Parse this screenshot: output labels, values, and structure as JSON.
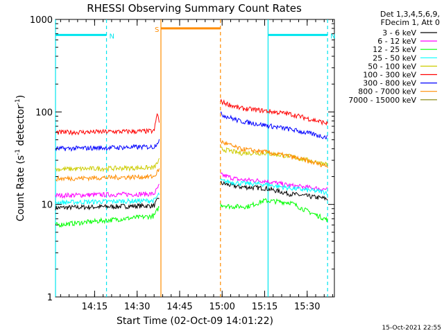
{
  "footer_timestamp": "15-Oct-2021 22:55",
  "chart_data": {
    "type": "line",
    "title": "RHESSI Observing Summary Count Rates",
    "xlabel": "Start Time (02-Oct-09 14:01:22)",
    "ylabel": "Count Rate (s⁻¹ detector⁻¹)",
    "ylabel_parts": [
      "Count Rate (s",
      "-1",
      " detector",
      "-1",
      ")"
    ],
    "y_scale": "log",
    "ylim": [
      1,
      1000
    ],
    "xlim_minutes": [
      14.02,
      15.66
    ],
    "x_tick_values": [
      14.25,
      14.5,
      14.75,
      15.0,
      15.25,
      15.5
    ],
    "x_tick_labels": [
      "14:15",
      "14:30",
      "14:45",
      "15:00",
      "15:15",
      "15:30"
    ],
    "y_tick_values": [
      1,
      10,
      100,
      1000
    ],
    "y_tick_labels": [
      "1",
      "10",
      "100",
      "1000"
    ],
    "legend_header": [
      "Det 1,3,4,5,6,9,",
      "FDecim 1, Att 0"
    ],
    "legend_position": "right",
    "gap": [
      14.64,
      14.99
    ],
    "series": [
      {
        "name": "3 - 6 keV",
        "color": "#000000",
        "seg1": [
          [
            14.02,
            9.2
          ],
          [
            14.6,
            9.7
          ],
          [
            14.63,
            12
          ]
        ],
        "seg2": [
          [
            14.99,
            17
          ],
          [
            15.1,
            15.5
          ],
          [
            15.25,
            15
          ],
          [
            15.4,
            13
          ],
          [
            15.62,
            11.5
          ]
        ]
      },
      {
        "name": "6 - 12 keV",
        "color": "#ff00ff",
        "seg1": [
          [
            14.02,
            12.5
          ],
          [
            14.6,
            13
          ],
          [
            14.63,
            16
          ]
        ],
        "seg2": [
          [
            14.99,
            21
          ],
          [
            15.1,
            18.5
          ],
          [
            15.25,
            18
          ],
          [
            15.4,
            16
          ],
          [
            15.62,
            14.5
          ]
        ]
      },
      {
        "name": "12 - 25 keV",
        "color": "#00ff00",
        "seg1": [
          [
            14.02,
            6
          ],
          [
            14.6,
            7.5
          ],
          [
            14.63,
            9.5
          ]
        ],
        "seg2": [
          [
            14.99,
            10
          ],
          [
            15.05,
            9.5
          ],
          [
            15.15,
            9.5
          ],
          [
            15.25,
            11
          ],
          [
            15.4,
            10.5
          ],
          [
            15.5,
            8.5
          ],
          [
            15.62,
            6.8
          ]
        ]
      },
      {
        "name": "25 - 50 keV",
        "color": "#00ffff",
        "seg1": [
          [
            14.02,
            10.5
          ],
          [
            14.6,
            11
          ],
          [
            14.63,
            13
          ]
        ],
        "seg2": [
          [
            14.99,
            18
          ],
          [
            15.1,
            17
          ],
          [
            15.25,
            16.5
          ],
          [
            15.4,
            15
          ],
          [
            15.62,
            13.5
          ]
        ]
      },
      {
        "name": "50 - 100 keV",
        "color": "#cccc00",
        "seg1": [
          [
            14.02,
            24
          ],
          [
            14.6,
            25
          ],
          [
            14.63,
            30
          ]
        ],
        "seg2": [
          [
            14.99,
            40
          ],
          [
            15.1,
            36
          ],
          [
            15.25,
            36
          ],
          [
            15.4,
            33
          ],
          [
            15.62,
            27
          ]
        ]
      },
      {
        "name": "100 - 300 keV",
        "color": "#ff0000",
        "seg1": [
          [
            14.02,
            60
          ],
          [
            14.6,
            62
          ],
          [
            14.62,
            100
          ],
          [
            14.63,
            75
          ]
        ],
        "seg2": [
          [
            14.99,
            130
          ],
          [
            15.1,
            110
          ],
          [
            15.25,
            103
          ],
          [
            15.4,
            95
          ],
          [
            15.62,
            75
          ]
        ]
      },
      {
        "name": "300 - 800 keV",
        "color": "#0000ff",
        "seg1": [
          [
            14.02,
            40
          ],
          [
            14.6,
            42
          ],
          [
            14.63,
            50
          ]
        ],
        "seg2": [
          [
            14.99,
            95
          ],
          [
            15.1,
            80
          ],
          [
            15.25,
            72
          ],
          [
            15.4,
            65
          ],
          [
            15.62,
            53
          ]
        ]
      },
      {
        "name": "800 - 7000 keV",
        "color": "#ff8c00",
        "seg1": [
          [
            14.02,
            19
          ],
          [
            14.6,
            20
          ],
          [
            14.63,
            24
          ]
        ],
        "seg2": [
          [
            14.99,
            48
          ],
          [
            15.1,
            40
          ],
          [
            15.25,
            37
          ],
          [
            15.4,
            33
          ],
          [
            15.62,
            26
          ]
        ]
      },
      {
        "name": "7000 - 15000 keV",
        "color": "#808000",
        "seg1": [],
        "seg2": []
      }
    ],
    "intervals": [
      {
        "label": "N",
        "color": "#00e5ee",
        "from": 14.02,
        "to": 14.32,
        "level": 680
      },
      {
        "label": "N",
        "color": "#00e5ee",
        "from": 15.27,
        "to": 15.62,
        "level": 680
      },
      {
        "label": "S",
        "color": "#ff8c00",
        "from": 14.64,
        "to": 14.99,
        "level": 800
      }
    ],
    "vertical_markers": [
      {
        "x": 14.02,
        "color": "#00e5ee",
        "style": "solid"
      },
      {
        "x": 14.32,
        "color": "#00e5ee",
        "style": "dashed"
      },
      {
        "x": 14.64,
        "color": "#ff8c00",
        "style": "solid"
      },
      {
        "x": 14.99,
        "color": "#ff8c00",
        "style": "dashed"
      },
      {
        "x": 15.27,
        "color": "#00e5ee",
        "style": "solid"
      },
      {
        "x": 15.62,
        "color": "#00e5ee",
        "style": "dashed"
      }
    ]
  }
}
